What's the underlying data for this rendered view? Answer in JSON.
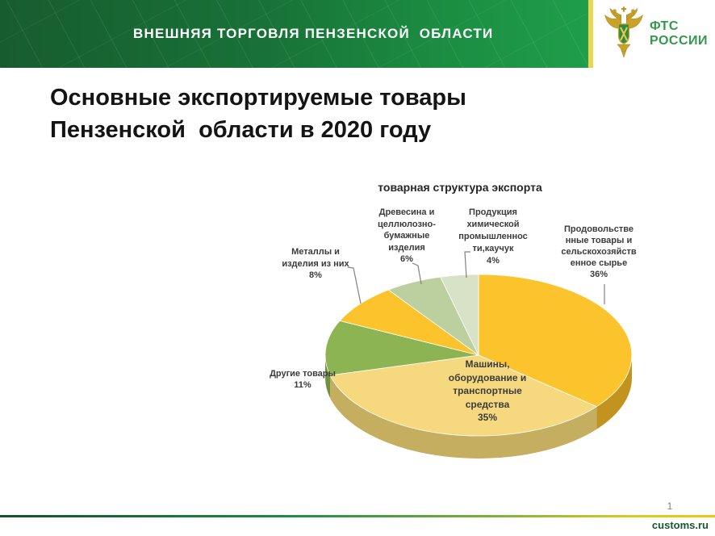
{
  "header": {
    "banner_title": "ВНЕШНЯЯ ТОРГОВЛЯ ПЕНЗЕНСКОЙ  ОБЛАСТИ",
    "logo": {
      "line1": "ФТС",
      "line2": "РОССИИ"
    }
  },
  "title": {
    "line1": "Основные экспортируемые товары",
    "line2": "Пензенской  области в 2020 году"
  },
  "chart_data": {
    "type": "pie",
    "style": "3d",
    "title": "товарная структура экспорта",
    "unit": "%",
    "start_angle_deg": 0,
    "direction": "clockwise",
    "slices": [
      {
        "label": "Продовольственные товары и сельскохозяйственное сырье",
        "value": 36,
        "display_lines": [
          "Продовольстве",
          "нные товары и",
          "сельскохозяйств",
          "енное сырье",
          "36%"
        ],
        "color": "#FBC42D",
        "side_color": "#C2941F"
      },
      {
        "label": "Машины, оборудование и транспортные средства",
        "value": 35,
        "display_lines": [
          "Машины,",
          "оборудование и",
          "транспортные",
          "средства",
          "35%"
        ],
        "color": "#F6D97E",
        "side_color": "#C6AE60"
      },
      {
        "label": "Другие товары",
        "value": 11,
        "display_lines": [
          "Другие товары",
          "11%"
        ],
        "color": "#8DB453",
        "side_color": "#6E9340"
      },
      {
        "label": "Металлы и изделия из них",
        "value": 8,
        "display_lines": [
          "Металлы и",
          "изделия из них",
          "8%"
        ],
        "color": "#FBC42D",
        "side_color": "#C2941F"
      },
      {
        "label": "Древесина и целлюлозно-бумажные изделия",
        "value": 6,
        "display_lines": [
          "Древесина и",
          "целлюлозно-",
          "бумажные",
          "изделия",
          "6%"
        ],
        "color": "#BCCF9E",
        "side_color": "#94A977"
      },
      {
        "label": "Продукция химической промышленности,каучук",
        "value": 4,
        "display_lines": [
          "Продукция",
          "химической",
          "промышленнос",
          "ти,каучук",
          "4%"
        ],
        "color": "#D8E2C6",
        "side_color": "#AEBD97"
      }
    ]
  },
  "footer": {
    "page_number": "1",
    "site": "customs.ru"
  },
  "theme": {
    "banner_green_dark": "#175C2F",
    "banner_green_bright": "#1F9E4B",
    "accent_yellow": "#E9D74D",
    "logo_green": "#33994D",
    "footer_gradient_start": "#11522A",
    "footer_gradient_end": "#F2C50B",
    "leader_line_gray": "#808080"
  }
}
